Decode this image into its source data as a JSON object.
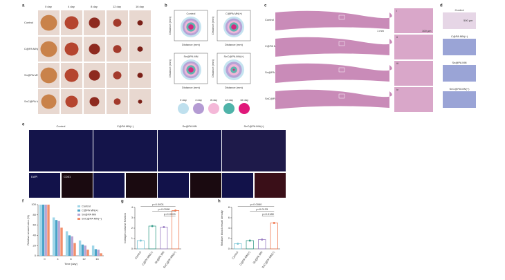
{
  "panel_labels": [
    "a",
    "b",
    "c",
    "d",
    "e",
    "f",
    "g",
    "h"
  ],
  "wound_photos": {
    "days": [
      "0 day",
      "4 day",
      "8 day",
      "12 day",
      "16 day"
    ],
    "groups": [
      "Control",
      "C@PA MN(+)",
      "Sn@PA MN",
      "SnC@PA MN(+)"
    ]
  },
  "contour_plots": {
    "titles": [
      "Control",
      "C@PA MN(+)",
      "Sn@PA MN",
      "SnC@PA MN(+)"
    ],
    "axis_label": "Distance (mm)",
    "legend": [
      {
        "name": "0 day",
        "color": "#bfe0ee"
      },
      {
        "name": "4 day",
        "color": "#b49bd3"
      },
      {
        "name": "8 day",
        "color": "#f4b8d8"
      },
      {
        "name": "12 day",
        "color": "#4fb3a9"
      },
      {
        "name": "16 day",
        "color": "#e0187a"
      }
    ]
  },
  "histology": {
    "groups": [
      "Control",
      "C@PA MN(+)",
      "Sn@PA MN",
      "SnC@PA MN(+)"
    ],
    "insets": [
      "i",
      "ii",
      "iii",
      "iv"
    ],
    "scale_bars": [
      "1 mm",
      "100 µm",
      "500 µm"
    ]
  },
  "fluorescence": {
    "groups": [
      "Control",
      "C@PA MN(+)",
      "Sn@PA MN",
      "SnC@PA MN(+)"
    ],
    "channels": [
      "DAPI",
      "CD31"
    ]
  },
  "chart_data": [
    {
      "type": "bar",
      "x_label": "Time (day)",
      "y_label": "Relative wound area (%)",
      "categories": [
        "0",
        "4",
        "8",
        "12",
        "16"
      ],
      "ylim": [
        0,
        100
      ],
      "yticks": [
        0,
        20,
        40,
        60,
        80,
        100
      ],
      "series": [
        {
          "name": "Control",
          "color": "#9fd6e8",
          "values": [
            100,
            75,
            48,
            30,
            20
          ]
        },
        {
          "name": "C@PA MN(+)",
          "color": "#4aa3c8",
          "values": [
            100,
            70,
            40,
            22,
            13
          ]
        },
        {
          "name": "Sn@PA MN",
          "color": "#b9a6d4",
          "values": [
            100,
            68,
            38,
            20,
            12
          ]
        },
        {
          "name": "SnC@PA MN(+)",
          "color": "#f28e6b",
          "values": [
            100,
            55,
            25,
            12,
            5
          ]
        }
      ]
    },
    {
      "type": "bar",
      "y_label": "Collagen volume fraction",
      "categories": [
        "Control",
        "C@PA MN(+)",
        "Sn@PA MN",
        "SnC@PA MN(+)"
      ],
      "ylim": [
        0,
        4
      ],
      "yticks": [
        0,
        1,
        2,
        3,
        4
      ],
      "values": [
        0.8,
        2.2,
        2.1,
        3.7
      ],
      "colors": [
        "#7cc6d6",
        "#3a9e8c",
        "#9b7fc4",
        "#f07a52"
      ],
      "annotations": [
        "p<0.0001",
        "p=0.0008",
        "p=0.0003"
      ]
    },
    {
      "type": "bar",
      "y_label": "Relative blood vessel density",
      "categories": [
        "Control",
        "C@PA MN(+)",
        "Sn@PA MN",
        "SnC@PA MN(+)"
      ],
      "ylim": [
        0,
        8
      ],
      "yticks": [
        0,
        2,
        4,
        6,
        8
      ],
      "values": [
        1,
        1.6,
        1.8,
        5
      ],
      "colors": [
        "#7cc6d6",
        "#3a9e8c",
        "#9b7fc4",
        "#f07a52"
      ],
      "annotations": [
        "p=0.0060",
        "p=0.0133",
        "p=0.0180"
      ]
    }
  ]
}
